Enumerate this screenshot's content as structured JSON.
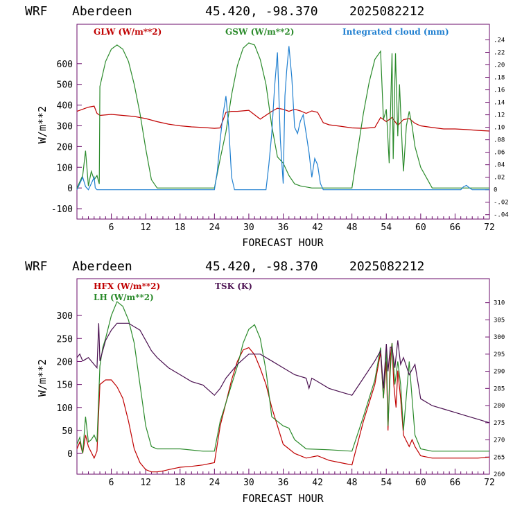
{
  "panels": [
    {
      "header": {
        "model": "WRF",
        "site": "Aberdeen",
        "coords": "45.420, -98.370",
        "run": "2025082212"
      },
      "xlabel": "FORECAST HOUR",
      "ylabel": "W/m**2",
      "legend": [
        {
          "text": "GLW (W/m**2)",
          "color": "#c00000"
        },
        {
          "text": "GSW (W/m**2)",
          "color": "#2a8a2a"
        },
        {
          "text": "Integrated cloud (mm)",
          "color": "#1f7fd0"
        }
      ],
      "y_ticks": [
        "-100",
        "0",
        "100",
        "200",
        "300",
        "400",
        "500",
        "600"
      ],
      "right_ticks": [
        "-.04",
        "-.02",
        "0",
        ".02",
        ".04",
        ".06",
        ".08",
        ".10",
        ".12",
        ".14",
        ".16",
        ".18",
        ".20",
        ".22",
        ".24"
      ],
      "x_ticks": [
        "6",
        "12",
        "18",
        "24",
        "30",
        "36",
        "42",
        "48",
        "54",
        "60",
        "66",
        "72"
      ]
    },
    {
      "header": {
        "model": "WRF",
        "site": "Aberdeen",
        "coords": "45.420, -98.370",
        "run": "2025082212"
      },
      "xlabel": "FORECAST HOUR",
      "ylabel": "W/m**2",
      "legend": [
        {
          "text": "HFX (W/m**2)",
          "color": "#c00000"
        },
        {
          "text": "LH  (W/m**2)",
          "color": "#2a8a2a"
        },
        {
          "text": "TSK (K)",
          "color": "#4a1050"
        }
      ],
      "y_ticks": [
        "0",
        "50",
        "100",
        "150",
        "200",
        "250",
        "300"
      ],
      "right_ticks": [
        "260",
        "265",
        "270",
        "275",
        "280",
        "285",
        "290",
        "295",
        "300",
        "305",
        "310"
      ],
      "x_ticks": [
        "6",
        "12",
        "18",
        "24",
        "30",
        "36",
        "42",
        "48",
        "54",
        "60",
        "66",
        "72"
      ]
    }
  ],
  "chart_data": [
    {
      "type": "line",
      "xlabel": "FORECAST HOUR",
      "ylabel": "W/m**2",
      "xlim": [
        0,
        72
      ],
      "ylim": [
        -150,
        790
      ],
      "y2lim": [
        -0.047,
        0.265
      ],
      "series": [
        {
          "name": "GLW (W/m**2)",
          "color": "#c00000",
          "axis": "left",
          "x": [
            0,
            1,
            2,
            3,
            3.5,
            4,
            6,
            8,
            10,
            12,
            14,
            16,
            18,
            20,
            22,
            24,
            25,
            26,
            27,
            28,
            30,
            32,
            34,
            35,
            36,
            37,
            38,
            39,
            40,
            41,
            42,
            43,
            44,
            46,
            48,
            50,
            52,
            53,
            54,
            55,
            56,
            57,
            58,
            59,
            60,
            62,
            64,
            66,
            68,
            70,
            72
          ],
          "y": [
            370,
            380,
            390,
            395,
            360,
            350,
            355,
            350,
            345,
            335,
            320,
            308,
            300,
            295,
            292,
            288,
            290,
            365,
            370,
            370,
            375,
            332,
            370,
            385,
            380,
            370,
            380,
            372,
            360,
            372,
            365,
            315,
            305,
            298,
            290,
            288,
            292,
            340,
            320,
            340,
            302,
            330,
            335,
            312,
            300,
            292,
            285,
            285,
            282,
            278,
            275
          ]
        },
        {
          "name": "GSW (W/m**2)",
          "color": "#2a8a2a",
          "axis": "left",
          "x": [
            0,
            0.5,
            1,
            1.5,
            2,
            2.5,
            3,
            3.5,
            3.9,
            4,
            5,
            6,
            7,
            8,
            9,
            10,
            11,
            12,
            13,
            14,
            24,
            25,
            26,
            27,
            28,
            29,
            30,
            31,
            32,
            33,
            34,
            35,
            36,
            37,
            38,
            39,
            40,
            41,
            42,
            48,
            49,
            50,
            51,
            52,
            53,
            53.5,
            54,
            54.5,
            55,
            55.2,
            55.6,
            56,
            56.3,
            56.8,
            57,
            57.5,
            58,
            58.5,
            59,
            60,
            61,
            62,
            72
          ],
          "y": [
            0,
            30,
            60,
            180,
            10,
            80,
            40,
            60,
            20,
            490,
            610,
            670,
            690,
            670,
            610,
            500,
            360,
            190,
            40,
            0,
            0,
            140,
            270,
            450,
            590,
            675,
            700,
            690,
            620,
            500,
            300,
            150,
            120,
            60,
            20,
            10,
            5,
            0,
            0,
            0,
            180,
            360,
            510,
            620,
            660,
            330,
            380,
            120,
            650,
            140,
            650,
            250,
            500,
            180,
            80,
            300,
            370,
            300,
            200,
            100,
            50,
            0,
            0
          ]
        },
        {
          "name": "Integrated cloud (mm)",
          "color": "#1f7fd0",
          "axis": "right",
          "x": [
            0,
            0.5,
            1,
            1.5,
            2,
            2.5,
            3,
            3.2,
            3.5,
            4,
            24,
            24.5,
            25,
            25.5,
            26,
            26.5,
            27,
            27.5,
            28,
            28.5,
            29,
            33,
            33.5,
            34,
            34.5,
            35,
            35.5,
            36,
            36.3,
            36.6,
            37,
            37.5,
            38,
            38.5,
            39,
            39.5,
            40,
            40.5,
            41,
            41.5,
            42,
            42.5,
            43,
            67,
            67.5,
            68,
            68.5,
            69,
            72
          ],
          "y": [
            0,
            0.01,
            0.02,
            0.005,
            0,
            0.01,
            0.02,
            0.003,
            0,
            0,
            0,
            0.03,
            0.08,
            0.12,
            0.15,
            0.1,
            0.02,
            0,
            0,
            0,
            0,
            0,
            0.04,
            0.09,
            0.165,
            0.22,
            0.08,
            0.01,
            0.15,
            0.19,
            0.23,
            0.18,
            0.1,
            0.09,
            0.11,
            0.12,
            0.09,
            0.06,
            0.02,
            0.05,
            0.04,
            0.01,
            0,
            0,
            0.005,
            0.007,
            0.003,
            0,
            0
          ]
        }
      ]
    },
    {
      "type": "line",
      "xlabel": "FORECAST HOUR",
      "ylabel": "W/m**2",
      "xlim": [
        0,
        72
      ],
      "ylim": [
        -45,
        380
      ],
      "y2lim": [
        260,
        317
      ],
      "series": [
        {
          "name": "HFX (W/m**2)",
          "color": "#c00000",
          "axis": "left",
          "x": [
            0,
            0.5,
            1,
            1.5,
            2,
            3,
            3.5,
            4,
            5,
            6,
            7,
            8,
            9,
            10,
            11,
            12,
            13,
            14,
            15,
            16,
            18,
            20,
            22,
            24,
            25,
            26,
            27,
            28,
            29,
            30,
            31,
            32,
            33,
            34,
            35,
            36,
            37,
            38,
            40,
            42,
            44,
            46,
            48,
            50,
            52,
            53,
            53.5,
            54,
            54.3,
            54.7,
            55,
            55.3,
            55.7,
            56,
            56.5,
            57,
            58,
            58.5,
            59,
            60,
            62,
            64,
            66,
            68,
            70,
            72
          ],
          "y": [
            10,
            25,
            0,
            40,
            15,
            -10,
            5,
            150,
            160,
            160,
            145,
            120,
            70,
            10,
            -20,
            -35,
            -40,
            -40,
            -38,
            -35,
            -30,
            -28,
            -25,
            -20,
            60,
            110,
            160,
            200,
            225,
            230,
            215,
            185,
            150,
            100,
            60,
            20,
            10,
            0,
            -10,
            -5,
            -15,
            -20,
            -25,
            70,
            150,
            220,
            120,
            200,
            50,
            210,
            240,
            150,
            100,
            180,
            120,
            40,
            15,
            30,
            15,
            -5,
            -10,
            -10,
            -10,
            -10,
            -10,
            -8
          ]
        },
        {
          "name": "LH  (W/m**2)",
          "color": "#2a8a2a",
          "axis": "left",
          "x": [
            0,
            0.5,
            1,
            1.5,
            2,
            2.5,
            3,
            3.5,
            4,
            4.5,
            5,
            6,
            7,
            8,
            9,
            10,
            11,
            12,
            13,
            14,
            18,
            22,
            24,
            25,
            26,
            27,
            28,
            29,
            30,
            31,
            32,
            33,
            34,
            35,
            36,
            37,
            38,
            40,
            44,
            48,
            50,
            52,
            53,
            53.5,
            54,
            54.3,
            54.7,
            55,
            55.5,
            56,
            56.5,
            57,
            58,
            58.5,
            59,
            60,
            62,
            66,
            72
          ],
          "y": [
            20,
            35,
            0,
            80,
            25,
            30,
            40,
            25,
            190,
            230,
            250,
            300,
            330,
            320,
            290,
            240,
            150,
            60,
            15,
            10,
            10,
            5,
            5,
            70,
            110,
            150,
            190,
            240,
            270,
            280,
            250,
            180,
            80,
            70,
            60,
            55,
            30,
            10,
            8,
            5,
            80,
            160,
            230,
            120,
            230,
            60,
            180,
            240,
            150,
            200,
            150,
            50,
            200,
            120,
            40,
            10,
            5,
            5,
            5
          ]
        },
        {
          "name": "TSK (K)",
          "color": "#4a1050",
          "axis": "right",
          "x": [
            0,
            0.5,
            1,
            2,
            3,
            3.5,
            3.8,
            4,
            5,
            6,
            7,
            8,
            9,
            10,
            11,
            12,
            13,
            14,
            16,
            18,
            20,
            22,
            24,
            25,
            26,
            28,
            30,
            32,
            33,
            34,
            36,
            38,
            40,
            40.5,
            41,
            42,
            44,
            46,
            48,
            50,
            52,
            53,
            53.5,
            54,
            54.3,
            54.7,
            55,
            55.5,
            56,
            56.5,
            57,
            58,
            59,
            60,
            62,
            64,
            66,
            68,
            70,
            72
          ],
          "y": [
            294,
            295,
            293,
            294,
            292,
            291,
            304,
            293,
            299,
            302,
            304,
            304,
            304,
            303,
            302,
            299,
            296,
            294,
            291,
            289,
            287,
            286,
            283,
            285,
            288,
            292,
            295,
            295,
            294,
            293,
            291,
            289,
            288,
            285,
            288,
            287,
            285,
            284,
            283,
            288,
            293,
            296,
            285,
            298,
            290,
            297,
            297,
            291,
            299,
            292,
            294,
            289,
            292,
            282,
            280,
            279,
            278,
            277,
            276,
            275
          ]
        }
      ]
    }
  ]
}
